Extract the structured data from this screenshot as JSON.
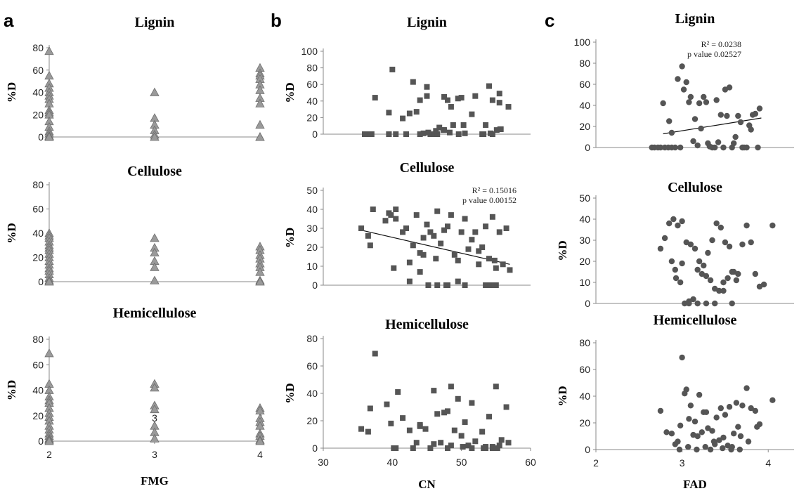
{
  "figure": {
    "panel_letters": [
      "a",
      "b",
      "c"
    ]
  },
  "chart_data": [
    {
      "type": "scatter",
      "panel": "a",
      "title": "Lignin",
      "xlabel": "",
      "ylabel": "%D",
      "xlim": [
        2,
        4
      ],
      "ylim": [
        0,
        80
      ],
      "xticks": [
        2,
        3,
        4
      ],
      "yticks": [
        0,
        20,
        40,
        60,
        80
      ],
      "marker": "triangle",
      "x": [
        2,
        2,
        2,
        2,
        2,
        2,
        2,
        2,
        2,
        2,
        2,
        2,
        2,
        2,
        2,
        2,
        2,
        2,
        3,
        3,
        3,
        3,
        3,
        3,
        4,
        4,
        4,
        4,
        4,
        4,
        4,
        4,
        4,
        4,
        4
      ],
      "y": [
        77,
        55,
        48,
        44,
        40,
        37,
        34,
        30,
        24,
        22,
        20,
        14,
        9,
        5,
        3,
        1,
        0,
        0,
        40,
        17,
        11,
        6,
        2,
        0,
        62,
        57,
        55,
        52,
        47,
        42,
        35,
        30,
        11,
        0,
        0
      ]
    },
    {
      "type": "scatter",
      "panel": "a",
      "title": "Cellulose",
      "xlabel": "",
      "ylabel": "%D",
      "xlim": [
        2,
        4
      ],
      "ylim": [
        0,
        80
      ],
      "xticks": [],
      "yticks": [
        0,
        20,
        40,
        60,
        80
      ],
      "marker": "triangle",
      "x": [
        2,
        2,
        2,
        2,
        2,
        2,
        2,
        2,
        2,
        2,
        2,
        2,
        2,
        2,
        2,
        2,
        2,
        3,
        3,
        3,
        3,
        3,
        3,
        4,
        4,
        4,
        4,
        4,
        4,
        4,
        4,
        4
      ],
      "y": [
        40,
        38,
        36,
        33,
        30,
        28,
        26,
        23,
        20,
        17,
        14,
        11,
        9,
        6,
        3,
        1,
        0,
        36,
        28,
        24,
        17,
        12,
        1,
        29,
        26,
        22,
        19,
        15,
        12,
        8,
        1,
        0
      ],
      "hidden_xticks": true
    },
    {
      "type": "scatter",
      "panel": "a",
      "title": "Hemicellulose",
      "xlabel": "FMG",
      "ylabel": "%D",
      "xlim": [
        2,
        4
      ],
      "ylim": [
        0,
        80
      ],
      "xticks": [
        2,
        3,
        4
      ],
      "yticks": [
        0,
        20,
        40,
        60,
        80
      ],
      "marker": "triangle",
      "x": [
        2,
        2,
        2,
        2,
        2,
        2,
        2,
        2,
        2,
        2,
        2,
        2,
        2,
        2,
        2,
        2,
        2,
        3,
        3,
        3,
        3,
        3,
        3,
        3,
        4,
        4,
        4,
        4,
        4,
        4,
        4,
        4,
        4
      ],
      "y": [
        69,
        45,
        40,
        35,
        32,
        30,
        26,
        22,
        19,
        16,
        12,
        9,
        6,
        4,
        2,
        1,
        0,
        45,
        42,
        28,
        25,
        12,
        7,
        2,
        26,
        24,
        18,
        15,
        12,
        6,
        4,
        1,
        0
      ]
    },
    {
      "type": "scatter",
      "panel": "b",
      "title": "Lignin",
      "xlabel": "",
      "ylabel": "%D",
      "xlim": [
        30,
        60
      ],
      "ylim": [
        0,
        100
      ],
      "xticks": [],
      "yticks": [
        0,
        20,
        40,
        60,
        80,
        100
      ],
      "marker": "square",
      "x": [
        37.5,
        40,
        43,
        45,
        48,
        49.5,
        52,
        54,
        55.5,
        56.8,
        36,
        37,
        39.5,
        41.5,
        43.5,
        45.5,
        46,
        47.5,
        48.5,
        50,
        51.5,
        53,
        54.5,
        55.5,
        39.5,
        42.5,
        44,
        45,
        46.5,
        47.5,
        48.8,
        50.3,
        53.5,
        54.5,
        55.6,
        36,
        36.8,
        39.5,
        40.5,
        42,
        44,
        44.5,
        45.2,
        46.3,
        46.8,
        47.4,
        48.3,
        49.6,
        50.5,
        53.2,
        54.2,
        55.1,
        55.7
      ],
      "y": [
        44,
        78,
        63,
        57,
        41,
        43,
        46,
        58,
        49,
        33,
        0,
        0,
        26,
        19,
        27,
        0,
        0,
        45,
        33,
        44,
        24,
        0,
        0,
        38,
        0,
        25,
        41,
        46,
        0,
        5,
        11,
        11,
        11,
        41,
        6,
        0,
        0,
        0,
        0,
        0,
        0,
        1,
        2,
        4,
        8,
        5,
        2,
        0,
        1,
        0,
        1,
        5,
        6
      ]
    },
    {
      "type": "scatter",
      "panel": "b",
      "title": "Cellulose",
      "xlabel": "",
      "ylabel": "%D",
      "xlim": [
        30,
        60
      ],
      "ylim": [
        0,
        50
      ],
      "xticks": [],
      "yticks": [
        0,
        10,
        20,
        30,
        40,
        50
      ],
      "marker": "square",
      "x": [
        35.5,
        36.5,
        37.2,
        39,
        39.8,
        40.5,
        41.5,
        42.5,
        43.5,
        44.5,
        45.5,
        46.5,
        47.5,
        48.5,
        49.5,
        50.5,
        51.5,
        52.5,
        53.5,
        54.5,
        55.5,
        56.5,
        36.8,
        39.5,
        40.5,
        42,
        43,
        44,
        45,
        46,
        47,
        48,
        49,
        50,
        51,
        52,
        53,
        54,
        55,
        56,
        57,
        40.2,
        42.5,
        44,
        45.2,
        46.5,
        48,
        49.5,
        50.5,
        53.5,
        54.2,
        55,
        44.5,
        46.3,
        47.8,
        52.5,
        54.8
      ],
      "y": [
        30,
        26,
        40,
        34,
        37,
        40,
        28,
        12,
        37,
        25,
        28,
        39,
        29,
        37,
        13,
        35,
        24,
        18,
        31,
        36,
        28,
        30,
        21,
        38,
        35,
        30,
        21,
        17,
        32,
        26,
        22,
        31,
        16,
        28,
        19,
        28,
        20,
        14,
        9,
        11,
        8,
        9,
        2,
        7,
        0,
        0,
        0,
        2,
        0,
        0,
        0,
        0,
        16,
        14,
        0,
        11,
        13
      ],
      "trendline": {
        "x": [
          35.5,
          57
        ],
        "y": [
          29,
          11
        ]
      },
      "annotation": [
        "R² = 0.15016",
        "p value 0.00152"
      ]
    },
    {
      "type": "scatter",
      "panel": "b",
      "title": "Hemicellulose",
      "xlabel": "CN",
      "ylabel": "%D",
      "xlim": [
        30,
        60
      ],
      "ylim": [
        0,
        80
      ],
      "xticks": [
        30,
        40,
        50,
        60
      ],
      "yticks": [
        0,
        20,
        40,
        60,
        80
      ],
      "marker": "square",
      "x": [
        37.5,
        35.5,
        36.8,
        39.2,
        40.8,
        42.5,
        44,
        46,
        47.5,
        48.5,
        49.5,
        50.5,
        51.5,
        53,
        54,
        55,
        56.5,
        39.8,
        41.5,
        43,
        44.8,
        46.5,
        48,
        49,
        50,
        52,
        53.5,
        54.5,
        55.8,
        56.8,
        36.5,
        40.5,
        43.5,
        45.5,
        47,
        48.5,
        50.2,
        51,
        53.5,
        54.5,
        55.5,
        40.2,
        44,
        46,
        48,
        51.5,
        53.2,
        55.2
      ],
      "y": [
        69,
        14,
        29,
        32,
        41,
        13,
        17,
        42,
        26,
        45,
        36,
        19,
        33,
        12,
        23,
        45,
        30,
        18,
        22,
        0,
        14,
        25,
        27,
        13,
        9,
        5,
        0,
        1,
        6,
        4,
        12,
        0,
        4,
        0,
        4,
        2,
        1,
        2,
        1,
        0,
        2,
        0,
        16,
        3,
        0,
        0,
        0,
        0
      ]
    },
    {
      "type": "scatter",
      "panel": "c",
      "title": "Lignin",
      "xlabel": "",
      "ylabel": "",
      "xlim": [
        2,
        4.3
      ],
      "ylim": [
        0,
        100
      ],
      "xticks": [],
      "yticks": [
        0,
        20,
        40,
        60,
        80,
        100
      ],
      "marker": "circle",
      "x": [
        2.65,
        2.68,
        2.72,
        2.75,
        2.8,
        2.84,
        2.88,
        2.92,
        2.98,
        2.78,
        2.85,
        2.88,
        3.0,
        3.05,
        3.1,
        3.15,
        3.2,
        3.25,
        3.3,
        3.35,
        3.4,
        3.45,
        3.5,
        3.55,
        3.6,
        3.65,
        3.7,
        3.75,
        3.8,
        3.85,
        3.9,
        2.95,
        3.02,
        3.08,
        3.13,
        3.18,
        3.22,
        3.28,
        3.32,
        3.38,
        3.42,
        3.48,
        3.52,
        3.58,
        3.62,
        3.68,
        3.72,
        3.78,
        3.82,
        3.88
      ],
      "y": [
        0,
        0,
        0,
        0,
        0,
        0,
        0,
        0,
        0,
        42,
        25,
        14,
        77,
        62,
        48,
        27,
        42,
        48,
        4,
        0,
        45,
        31,
        55,
        57,
        4,
        30,
        0,
        0,
        17,
        32,
        37,
        65,
        55,
        43,
        6,
        2,
        18,
        43,
        1,
        0,
        5,
        0,
        30,
        0,
        10,
        24,
        0,
        21,
        31,
        0
      ],
      "trendline": {
        "x": [
          2.78,
          3.92
        ],
        "y": [
          13,
          28
        ]
      },
      "annotation": [
        "R² = 0.0238",
        "p value 0.02527"
      ]
    },
    {
      "type": "scatter",
      "panel": "c",
      "title": "Cellulose",
      "xlabel": "",
      "ylabel": "%D",
      "xlim": [
        2,
        4.3
      ],
      "ylim": [
        0,
        50
      ],
      "xticks": [],
      "yticks": [
        0,
        10,
        20,
        30,
        40,
        50
      ],
      "marker": "circle",
      "x": [
        2.75,
        2.8,
        2.85,
        2.9,
        2.95,
        3.0,
        3.05,
        3.1,
        3.15,
        3.2,
        3.25,
        3.3,
        3.35,
        3.4,
        3.45,
        3.5,
        3.55,
        3.6,
        3.65,
        3.7,
        3.75,
        3.8,
        3.85,
        3.9,
        3.95,
        4.05,
        2.88,
        2.93,
        2.98,
        3.03,
        3.08,
        3.13,
        3.18,
        3.23,
        3.28,
        3.33,
        3.38,
        3.43,
        3.48,
        3.53,
        3.58,
        3.63,
        2.92,
        3.0,
        3.08,
        3.18,
        3.28,
        3.38,
        3.48,
        3.58
      ],
      "y": [
        26,
        31,
        38,
        40,
        37,
        39,
        29,
        28,
        26,
        20,
        18,
        24,
        30,
        38,
        36,
        29,
        27,
        15,
        14,
        28,
        37,
        29,
        14,
        8,
        9,
        37,
        20,
        12,
        10,
        0,
        1,
        2,
        16,
        14,
        13,
        11,
        7,
        6,
        10,
        12,
        15,
        11,
        16,
        19,
        0,
        0,
        0,
        0,
        6,
        0
      ]
    },
    {
      "type": "scatter",
      "panel": "c",
      "title": "Hemicellulose",
      "xlabel": "FAD",
      "ylabel": "%D",
      "xlim": [
        2,
        4.3
      ],
      "ylim": [
        0,
        80
      ],
      "xticks": [
        2,
        3,
        4
      ],
      "yticks": [
        0,
        20,
        40,
        60,
        80
      ],
      "marker": "circle",
      "x": [
        2.75,
        2.82,
        2.88,
        2.95,
        3.0,
        3.05,
        3.1,
        3.15,
        3.2,
        3.25,
        3.3,
        3.35,
        3.4,
        3.45,
        3.5,
        3.55,
        3.6,
        3.65,
        3.7,
        3.75,
        3.8,
        3.85,
        3.9,
        4.05,
        2.92,
        2.98,
        3.03,
        3.08,
        3.13,
        3.18,
        3.23,
        3.28,
        3.33,
        3.38,
        3.43,
        3.48,
        3.53,
        3.58,
        3.63,
        3.68,
        2.97,
        3.07,
        3.17,
        3.27,
        3.37,
        3.47,
        3.57,
        3.67,
        3.77,
        3.87
      ],
      "y": [
        29,
        13,
        12,
        6,
        69,
        45,
        33,
        21,
        41,
        28,
        16,
        14,
        24,
        31,
        26,
        32,
        12,
        17,
        33,
        46,
        31,
        29,
        19,
        37,
        4,
        18,
        42,
        23,
        11,
        10,
        13,
        28,
        0,
        4,
        7,
        9,
        3,
        2,
        35,
        10,
        0,
        2,
        0,
        2,
        6,
        1,
        0,
        0,
        6,
        17
      ]
    }
  ]
}
